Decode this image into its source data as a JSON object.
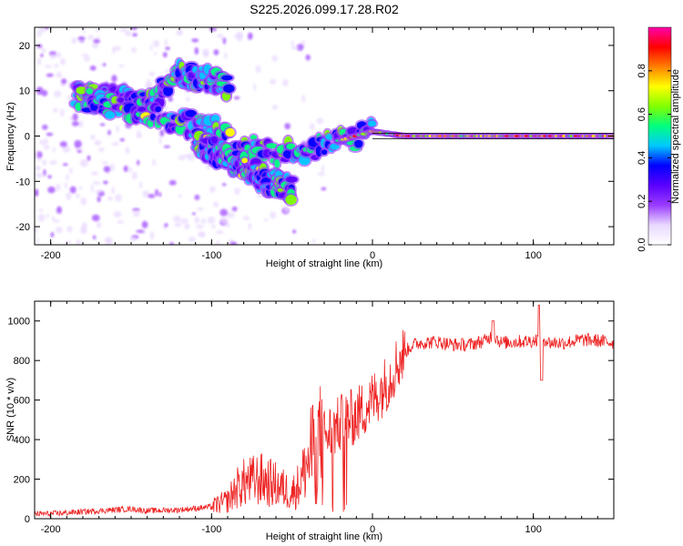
{
  "title": "S225.2026.099.17.28.R02",
  "colors": {
    "snr_line": "#ee2222",
    "axis": "#000000",
    "background": "#ffffff"
  },
  "chart_data": [
    {
      "type": "heatmap",
      "name": "spectrogram",
      "xlabel": "Height of straight line (km)",
      "ylabel": "Frequency (Hz)",
      "xlim": [
        -210,
        150
      ],
      "ylim": [
        -24,
        24
      ],
      "xticks": [
        -200,
        -100,
        0,
        100
      ],
      "yticks": [
        -20,
        -10,
        0,
        10,
        20
      ],
      "colorbar": {
        "label": "Normalized spectral amplitude",
        "range": [
          0,
          1
        ],
        "ticks": [
          0.0,
          0.2,
          0.4,
          0.6,
          0.8
        ],
        "tick_labels": [
          "0.0",
          "0.2",
          "0.4",
          "0.6",
          "0.8"
        ],
        "colormap": [
          "#ffffff",
          "#e9d8ff",
          "#9a3cff",
          "#5a00ff",
          "#0000ff",
          "#00c8ff",
          "#00ff80",
          "#80ff00",
          "#ffff00",
          "#ff8000",
          "#ff0000",
          "#ff00aa"
        ]
      },
      "features": [
        {
          "label": "upper branch",
          "x": [
            -185,
            -160,
            -140,
            -120,
            -100,
            -90
          ],
          "y": [
            9,
            8,
            7,
            14,
            12,
            11
          ]
        },
        {
          "label": "main descending branch",
          "x": [
            -180,
            -150,
            -120,
            -100,
            -80,
            -60,
            -45,
            -30,
            -15,
            0
          ],
          "y": [
            8,
            6,
            3,
            2,
            -2,
            -4,
            -3,
            -2,
            -1,
            1
          ]
        },
        {
          "label": "lower tail",
          "x": [
            -110,
            -90,
            -70,
            -50
          ],
          "y": [
            -1,
            -5,
            -9,
            -12
          ]
        },
        {
          "label": "carrier",
          "x": [
            -20,
            0,
            20,
            50,
            100,
            150
          ],
          "y": [
            -1,
            1,
            0,
            0,
            0,
            0
          ]
        }
      ]
    },
    {
      "type": "line",
      "name": "snr",
      "xlabel": "Height of straight line (km)",
      "ylabel": "SNR (10 * v/v)",
      "xlim": [
        -210,
        150
      ],
      "ylim": [
        0,
        1100
      ],
      "xticks": [
        -200,
        -100,
        0,
        100
      ],
      "yticks": [
        0,
        200,
        400,
        600,
        800,
        1000
      ],
      "series": [
        {
          "name": "SNR",
          "x": [
            -210,
            -200,
            -180,
            -160,
            -150,
            -140,
            -120,
            -100,
            -90,
            -85,
            -80,
            -70,
            -60,
            -50,
            -45,
            -40,
            -35,
            -30,
            -25,
            -20,
            -15,
            -10,
            -5,
            0,
            5,
            10,
            15,
            20,
            25,
            30,
            40,
            50,
            60,
            70,
            75,
            80,
            90,
            100,
            105,
            110,
            120,
            130,
            140,
            150
          ],
          "y": [
            25,
            25,
            35,
            45,
            50,
            40,
            45,
            60,
            90,
            150,
            180,
            200,
            170,
            130,
            180,
            300,
            400,
            420,
            440,
            480,
            500,
            520,
            560,
            600,
            650,
            700,
            780,
            840,
            880,
            890,
            895,
            880,
            880,
            900,
            930,
            890,
            895,
            900,
            920,
            890,
            890,
            905,
            900,
            890
          ]
        }
      ]
    }
  ]
}
